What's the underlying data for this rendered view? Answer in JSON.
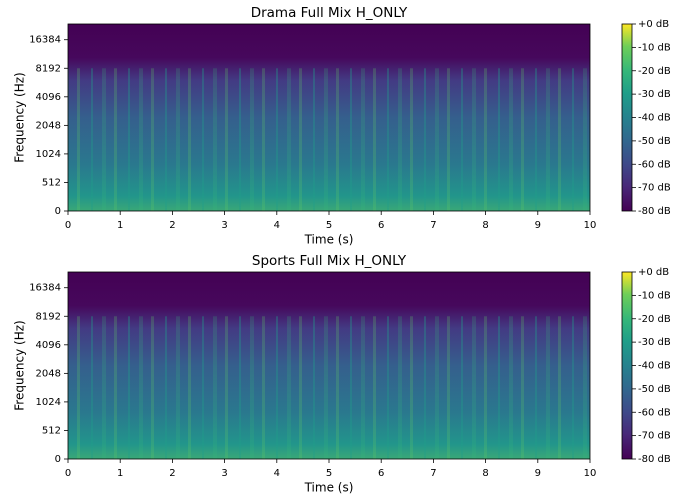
{
  "chart_data": [
    {
      "type": "spectrogram",
      "title": "Drama Full Mix H_ONLY",
      "x_label": "Time (s)",
      "y_label": "Frequency (Hz)",
      "xlim": [
        0,
        10
      ],
      "xticks": [
        0,
        1,
        2,
        3,
        4,
        5,
        6,
        7,
        8,
        9,
        10
      ],
      "ylim": [
        0,
        24000
      ],
      "yticks": [
        0,
        512,
        1024,
        2048,
        4096,
        8192,
        16384
      ],
      "yscale": "symlog",
      "colormap": "viridis",
      "clim": [
        -80,
        0
      ],
      "colorbar_ticks": [
        {
          "value": 0,
          "label": "+0 dB"
        },
        {
          "value": -10,
          "label": "-10 dB"
        },
        {
          "value": -20,
          "label": "-20 dB"
        },
        {
          "value": -30,
          "label": "-30 dB"
        },
        {
          "value": -40,
          "label": "-40 dB"
        },
        {
          "value": -50,
          "label": "-50 dB"
        },
        {
          "value": -60,
          "label": "-60 dB"
        },
        {
          "value": -70,
          "label": "-70 dB"
        },
        {
          "value": -80,
          "label": "-80 dB"
        }
      ]
    },
    {
      "type": "spectrogram",
      "title": "Sports Full Mix H_ONLY",
      "x_label": "Time (s)",
      "y_label": "Frequency (Hz)",
      "xlim": [
        0,
        10
      ],
      "xticks": [
        0,
        1,
        2,
        3,
        4,
        5,
        6,
        7,
        8,
        9,
        10
      ],
      "ylim": [
        0,
        24000
      ],
      "yticks": [
        0,
        512,
        1024,
        2048,
        4096,
        8192,
        16384
      ],
      "yscale": "symlog",
      "colormap": "viridis",
      "clim": [
        -80,
        0
      ],
      "colorbar_ticks": [
        {
          "value": 0,
          "label": "+0 dB"
        },
        {
          "value": -10,
          "label": "-10 dB"
        },
        {
          "value": -20,
          "label": "-20 dB"
        },
        {
          "value": -30,
          "label": "-30 dB"
        },
        {
          "value": -40,
          "label": "-40 dB"
        },
        {
          "value": -50,
          "label": "-50 dB"
        },
        {
          "value": -60,
          "label": "-60 dB"
        },
        {
          "value": -70,
          "label": "-70 dB"
        },
        {
          "value": -80,
          "label": "-80 dB"
        }
      ]
    }
  ]
}
